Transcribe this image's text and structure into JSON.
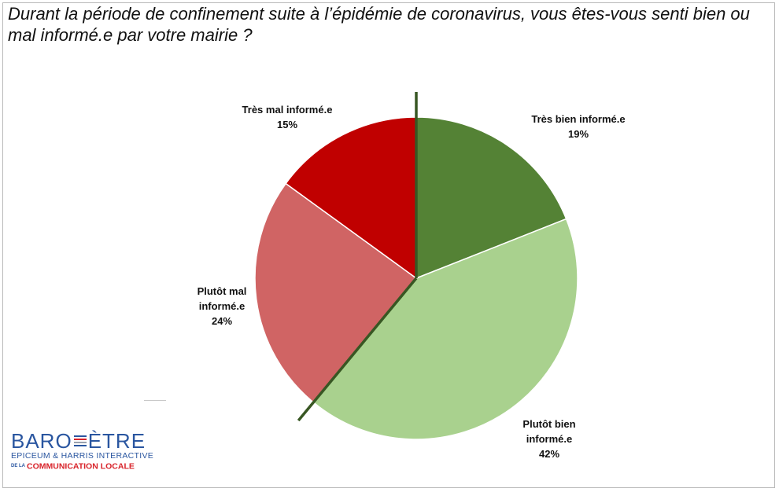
{
  "title": "Durant la période de confinement suite à l’épidémie de coronavirus, vous êtes-vous senti bien ou mal informé.e par votre mairie ?",
  "chart_data": {
    "type": "pie",
    "title": "Durant la période de confinement suite à l’épidémie de coronavirus, vous êtes-vous senti bien ou mal informé.e par votre mairie ?",
    "slices": [
      {
        "label": "Très bien informé.e",
        "label_lines": [
          "Très bien informé.e"
        ],
        "value": 19,
        "value_label": "19%",
        "color": "#548235"
      },
      {
        "label": "Plutôt bien informé.e",
        "label_lines": [
          "Plutôt bien",
          "informé.e"
        ],
        "value": 42,
        "value_label": "42%",
        "color": "#a9d18e"
      },
      {
        "label": "Plutôt mal informé.e",
        "label_lines": [
          "Plutôt mal",
          "informé.e"
        ],
        "value": 24,
        "value_label": "24%",
        "color": "#d06464"
      },
      {
        "label": "Très mal informé.e",
        "label_lines": [
          "Très mal informé.e"
        ],
        "value": 15,
        "value_label": "15%",
        "color": "#c00000"
      }
    ],
    "start": "12 o'clock",
    "direction": "clockwise",
    "divider_color": "#385723",
    "legend": "none"
  },
  "logo": {
    "top_left": "BARO",
    "top_right": "ÈTRE",
    "middle": "EPICEUM & HARRIS INTERACTIVE",
    "small": "DE LA",
    "bottom": "COMMUNICATION LOCALE",
    "colors": {
      "blue": "#2a56a0",
      "red": "#d8232a"
    }
  }
}
